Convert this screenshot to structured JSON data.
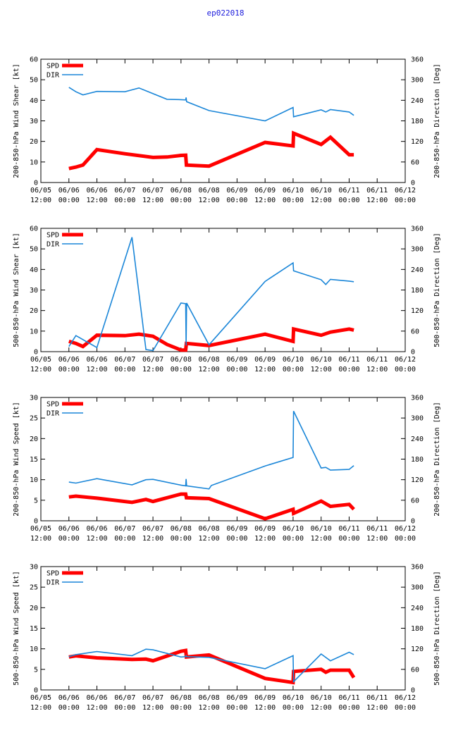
{
  "title": "ep022018",
  "colors": {
    "spd": "#ff0000",
    "dir": "#1a86d8",
    "title": "#1a1adc",
    "axis": "#000000"
  },
  "x_ticks": [
    [
      "06/05",
      "12:00"
    ],
    [
      "06/06",
      "00:00"
    ],
    [
      "06/06",
      "12:00"
    ],
    [
      "06/07",
      "00:00"
    ],
    [
      "06/07",
      "12:00"
    ],
    [
      "06/08",
      "00:00"
    ],
    [
      "06/08",
      "12:00"
    ],
    [
      "06/09",
      "00:00"
    ],
    [
      "06/09",
      "12:00"
    ],
    [
      "06/10",
      "00:00"
    ],
    [
      "06/10",
      "12:00"
    ],
    [
      "06/11",
      "00:00"
    ],
    [
      "06/11",
      "12:00"
    ],
    [
      "06/12",
      "00:00"
    ]
  ],
  "chart_data": [
    {
      "type": "line",
      "ylabel": "200-850-hPa Wind Shear [kt]",
      "y2label": "200-850-hPa Direction [Deg]",
      "xlim": [
        0,
        156
      ],
      "ylim": [
        0,
        60
      ],
      "y2lim": [
        0,
        360
      ],
      "yticks": [
        0,
        10,
        20,
        30,
        40,
        50,
        60
      ],
      "y2ticks": [
        0,
        60,
        120,
        180,
        240,
        300,
        360
      ],
      "legend": [
        "SPD",
        "DIR"
      ],
      "legend_position": "top-left",
      "series": [
        {
          "name": "SPD",
          "axis": "left",
          "x": [
            12,
            15,
            18,
            24,
            36,
            48,
            54,
            60,
            62,
            62.3,
            72,
            96,
            108,
            108.2,
            120,
            124,
            132,
            134
          ],
          "y": [
            6.8,
            7.5,
            8.5,
            16,
            14,
            12.2,
            12.4,
            13.2,
            13.3,
            8.5,
            8,
            19.5,
            17.8,
            24,
            18.5,
            22,
            13.5,
            13.5
          ]
        },
        {
          "name": "DIR",
          "axis": "right",
          "x": [
            12,
            15,
            18,
            24,
            36,
            42,
            54,
            60,
            62,
            62.2,
            62.4,
            72,
            96,
            108,
            108.2,
            120,
            122,
            124,
            132,
            134
          ],
          "y": [
            278,
            265,
            256,
            266,
            265,
            276,
            243,
            242,
            241,
            248,
            236,
            210,
            180,
            219,
            192,
            212,
            206,
            213,
            206,
            196
          ]
        }
      ]
    },
    {
      "type": "line",
      "ylabel": "500-850-hPa Wind Shear [kt]",
      "y2label": "500-850-hPa Direction [Deg]",
      "xlim": [
        0,
        156
      ],
      "ylim": [
        0,
        60
      ],
      "y2lim": [
        0,
        360
      ],
      "yticks": [
        0,
        10,
        20,
        30,
        40,
        50,
        60
      ],
      "y2ticks": [
        0,
        60,
        120,
        180,
        240,
        300,
        360
      ],
      "legend": [
        "SPD",
        "DIR"
      ],
      "legend_position": "top-left",
      "series": [
        {
          "name": "SPD",
          "axis": "left",
          "x": [
            12,
            15,
            18,
            24,
            36,
            42,
            48,
            54,
            60,
            62,
            62.3,
            72,
            96,
            108,
            108.2,
            120,
            124,
            132,
            134
          ],
          "y": [
            5,
            4,
            2.5,
            8,
            7.8,
            8.5,
            7.5,
            3.5,
            0.8,
            0.8,
            4,
            3,
            8.5,
            5,
            11,
            8,
            9.5,
            11,
            10.5
          ]
        },
        {
          "name": "DIR",
          "axis": "right",
          "x": [
            12,
            15,
            24,
            39,
            45,
            48,
            60,
            62,
            62.2,
            62.4,
            72,
            96,
            108,
            108.2,
            120,
            122,
            124,
            132,
            134
          ],
          "y": [
            15,
            47,
            12,
            334,
            6,
            3,
            142,
            140,
            18,
            142,
            20,
            205,
            259,
            236,
            210,
            196,
            211,
            206,
            204
          ]
        }
      ]
    },
    {
      "type": "line",
      "ylabel": "200-850-hPa Wind Speed [kt]",
      "y2label": "200-850-hPa Direction [Deg]",
      "xlim": [
        0,
        156
      ],
      "ylim": [
        0,
        30
      ],
      "y2lim": [
        0,
        360
      ],
      "yticks": [
        0,
        5,
        10,
        15,
        20,
        25,
        30
      ],
      "y2ticks": [
        0,
        60,
        120,
        180,
        240,
        300,
        360
      ],
      "legend": [
        "SPD",
        "DIR"
      ],
      "legend_position": "top-left",
      "series": [
        {
          "name": "SPD",
          "axis": "left",
          "x": [
            12,
            15,
            24,
            39,
            45,
            48,
            60,
            62,
            62.3,
            72,
            96,
            108,
            108.2,
            120,
            124,
            132,
            134
          ],
          "y": [
            5.8,
            6,
            5.5,
            4.5,
            5.2,
            4.7,
            6.5,
            6.5,
            5.6,
            5.4,
            0.5,
            2.8,
            1.8,
            4.8,
            3.5,
            4,
            2.8
          ]
        },
        {
          "name": "DIR",
          "axis": "right",
          "x": [
            12,
            15,
            24,
            39,
            45,
            48,
            60,
            62,
            62.2,
            62.4,
            72,
            73,
            96,
            108,
            108.2,
            120,
            122,
            124,
            132,
            134
          ],
          "y": [
            113,
            110,
            123,
            105,
            120,
            121,
            104,
            102,
            122,
            102,
            93,
            103,
            160,
            185,
            320,
            154,
            156,
            148,
            150,
            161
          ]
        }
      ]
    },
    {
      "type": "line",
      "ylabel": "500-850-hPa Wind Speed [kt]",
      "y2label": "500-850-hPa Direction [Deg]",
      "xlim": [
        0,
        156
      ],
      "ylim": [
        0,
        30
      ],
      "y2lim": [
        0,
        360
      ],
      "yticks": [
        0,
        5,
        10,
        15,
        20,
        25,
        30
      ],
      "y2ticks": [
        0,
        60,
        120,
        180,
        240,
        300,
        360
      ],
      "legend": [
        "SPD",
        "DIR"
      ],
      "legend_position": "top-left",
      "series": [
        {
          "name": "SPD",
          "axis": "left",
          "x": [
            12,
            15,
            24,
            39,
            45,
            48,
            60,
            62,
            62.3,
            72,
            96,
            108,
            108.2,
            120,
            122,
            124,
            132,
            134
          ],
          "y": [
            8,
            8.3,
            7.8,
            7.4,
            7.5,
            7.1,
            9.4,
            9.6,
            8,
            8.5,
            2.8,
            1.8,
            4.5,
            5,
            4.3,
            4.8,
            4.8,
            3
          ]
        },
        {
          "name": "DIR",
          "axis": "right",
          "x": [
            12,
            15,
            24,
            39,
            45,
            48,
            60,
            62,
            62.2,
            62.4,
            72,
            96,
            108,
            108.2,
            120,
            124,
            132,
            134
          ],
          "y": [
            97,
            103,
            112,
            100,
            119,
            117,
            96,
            97,
            100,
            97,
            95,
            62,
            100,
            24,
            105,
            85,
            110,
            103
          ]
        }
      ]
    }
  ]
}
